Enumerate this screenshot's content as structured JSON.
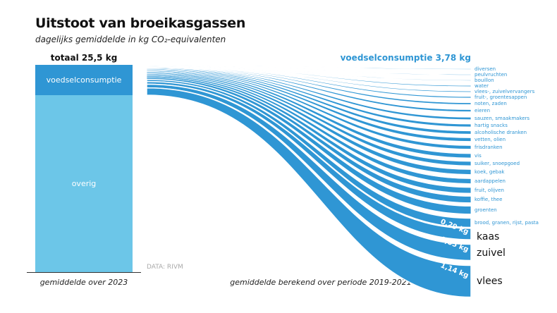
{
  "title": "Uitstoot van broeikasgassen",
  "subtitle": "dagelijks gemiddelde in kg CO₂-equivalenten",
  "left": {
    "total_label": "totaal 25,5 kg",
    "segments": [
      {
        "label": "voedselconsumptie",
        "color": "#2f96d4"
      },
      {
        "label": "overig",
        "color": "#6cc6e8"
      }
    ],
    "note": "gemiddelde over 2023"
  },
  "source": "DATA: RIVM",
  "right": {
    "total_label": "voedselconsumptie 3,78 kg",
    "note": "gemiddelde berekend over periode 2019-2021",
    "flow_color": "#2f96d4",
    "categories": [
      {
        "label": "diversen"
      },
      {
        "label": "peulvruchten"
      },
      {
        "label": "bouillon"
      },
      {
        "label": "water"
      },
      {
        "label": "vlees-, zuivelvervangers"
      },
      {
        "label": "fruit-, groentesappen"
      },
      {
        "label": "noten, zaden"
      },
      {
        "label": "eieren"
      },
      {
        "label": "sauzen, smaakmakers"
      },
      {
        "label": "hartig snacks"
      },
      {
        "label": "alcoholische dranken"
      },
      {
        "label": "vetten, olien"
      },
      {
        "label": "frisdranken"
      },
      {
        "label": "vis"
      },
      {
        "label": "suiker, snoepgoed"
      },
      {
        "label": "koek, gebak"
      },
      {
        "label": "aardappelen"
      },
      {
        "label": "fruit, olijven"
      },
      {
        "label": "koffie, thee"
      },
      {
        "label": "groenten"
      },
      {
        "label": "brood, granen, rijst, pasta"
      },
      {
        "label": "kaas",
        "value": "0,29 kg"
      },
      {
        "label": "zuivel",
        "value": "0,55 kg"
      },
      {
        "label": "vlees",
        "value": "1,14 kg"
      }
    ]
  }
}
